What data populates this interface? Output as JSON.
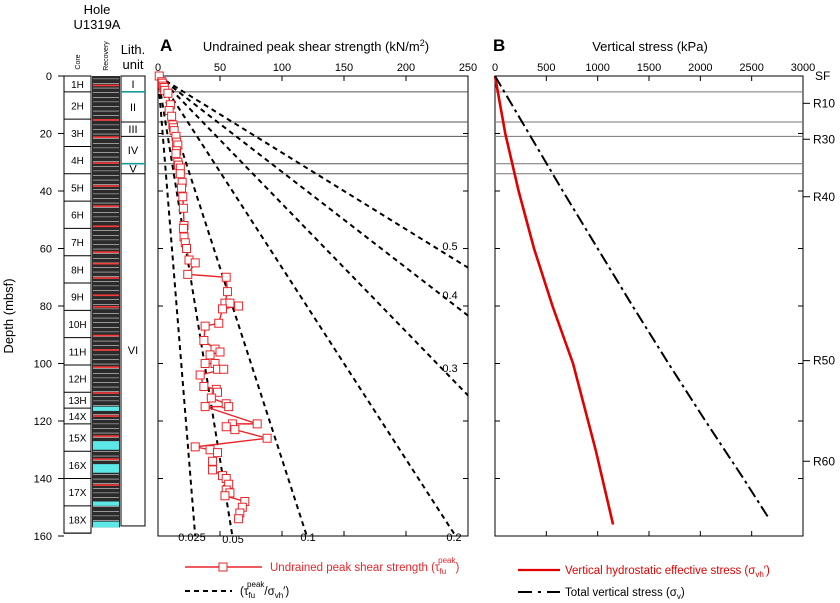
{
  "hole": {
    "line1": "Hole",
    "line2": "U1319A"
  },
  "core_col": {
    "label": "Core"
  },
  "recovery_col": {
    "label": "Recovery"
  },
  "lith_col": {
    "line1": "Lith.",
    "line2": "unit"
  },
  "ylabel": "Depth (mbsf)",
  "cores": [
    {
      "name": "1H",
      "top": 0,
      "bottom": 5.5
    },
    {
      "name": "2H",
      "top": 5.5,
      "bottom": 15
    },
    {
      "name": "3H",
      "top": 15,
      "bottom": 24.5
    },
    {
      "name": "4H",
      "top": 24.5,
      "bottom": 34
    },
    {
      "name": "5H",
      "top": 34,
      "bottom": 43.5
    },
    {
      "name": "6H",
      "top": 43.5,
      "bottom": 53
    },
    {
      "name": "7H",
      "top": 53,
      "bottom": 62.5
    },
    {
      "name": "8H",
      "top": 62.5,
      "bottom": 72
    },
    {
      "name": "9H",
      "top": 72,
      "bottom": 81.5
    },
    {
      "name": "10H",
      "top": 81.5,
      "bottom": 91
    },
    {
      "name": "11H",
      "top": 91,
      "bottom": 100.5
    },
    {
      "name": "12H",
      "top": 100.5,
      "bottom": 110
    },
    {
      "name": "13H",
      "top": 110,
      "bottom": 115.5
    },
    {
      "name": "14X",
      "top": 115.5,
      "bottom": 121
    },
    {
      "name": "15X",
      "top": 121,
      "bottom": 130.5
    },
    {
      "name": "16X",
      "top": 130.5,
      "bottom": 140
    },
    {
      "name": "17X",
      "top": 140,
      "bottom": 149.5
    },
    {
      "name": "18X",
      "top": 149.5,
      "bottom": 159
    }
  ],
  "lith_units": [
    {
      "name": "I",
      "top": 0,
      "bottom": 5.5
    },
    {
      "name": "II",
      "top": 5.5,
      "bottom": 16
    },
    {
      "name": "III",
      "top": 16,
      "bottom": 21
    },
    {
      "name": "IV",
      "top": 21,
      "bottom": 30.5
    },
    {
      "name": "V",
      "top": 30.5,
      "bottom": 34
    },
    {
      "name": "VI",
      "top": 34,
      "bottom": 156.5
    }
  ],
  "unit_boundaries": [
    5.5,
    16,
    21,
    30.5,
    34
  ],
  "reflectors": [
    {
      "name": "SF",
      "depth": 0
    },
    {
      "name": "R10",
      "depth": 9.5
    },
    {
      "name": "R30",
      "depth": 22
    },
    {
      "name": "R40",
      "depth": 42
    },
    {
      "name": "R50",
      "depth": 99
    },
    {
      "name": "R60",
      "depth": 134
    }
  ],
  "colors": {
    "strength": "#e8262a",
    "stress": "#e00000",
    "ratio": "#000000",
    "teal": "#1a9a9a",
    "cyan": "#5de8e8"
  },
  "chart_data": [
    {
      "panel": "A",
      "type": "scatter",
      "title": "Undrained peak shear strength (kN/m²)",
      "xlabel": "Undrained peak shear strength (kN/m²)",
      "ylabel": "Depth (mbsf)",
      "xlim": [
        0,
        250
      ],
      "ylim": [
        160,
        0
      ],
      "xticks": [
        0,
        50,
        100,
        150,
        200,
        250
      ],
      "yticks": [
        0,
        20,
        40,
        60,
        80,
        100,
        120,
        140,
        160
      ],
      "series": [
        {
          "name": "Undrained peak shear strength (τfu peak)",
          "x": [
            1,
            3,
            3.5,
            4,
            5,
            5.5,
            8,
            10,
            9,
            11,
            12,
            12.5,
            13,
            14.5,
            15,
            16,
            15,
            14.5,
            16,
            16.5,
            18,
            18,
            19.5,
            19,
            20,
            20.5,
            21,
            20.5,
            21,
            22,
            23,
            25,
            30,
            24,
            55,
            56,
            54,
            58,
            65,
            52,
            49,
            38,
            37,
            46,
            50,
            42,
            38,
            46,
            48,
            53,
            34,
            37,
            47,
            48,
            43,
            55,
            57,
            38,
            80,
            60,
            55,
            62,
            88,
            30,
            42,
            48,
            44,
            44,
            52,
            55,
            57,
            55,
            58,
            54,
            70,
            68,
            66,
            65
          ],
          "y": [
            0,
            2,
            2.5,
            3.5,
            4,
            5,
            6,
            10,
            12,
            14,
            17,
            18,
            19,
            21,
            23,
            24,
            26,
            27,
            30,
            31,
            32,
            34,
            37,
            39,
            42,
            46,
            52,
            53,
            56,
            58,
            60,
            64,
            65,
            69,
            70,
            75,
            79,
            79,
            80,
            81,
            86,
            87,
            92,
            95,
            96,
            97,
            100,
            100,
            102,
            102,
            104,
            108,
            109,
            110,
            112,
            114,
            115,
            115,
            121,
            121,
            122,
            123,
            126,
            129,
            130,
            131,
            134,
            137,
            139,
            140,
            142,
            144,
            145,
            146,
            148,
            150,
            152,
            154
          ]
        },
        {
          "name": "(τfu peak/σvh′)",
          "ratios": [
            0.025,
            0.05,
            0.1,
            0.2,
            0.3,
            0.4,
            0.5
          ],
          "ratio_labels": [
            "0.025",
            "0.05",
            "0.1",
            "0.2",
            "0.3",
            "0.4",
            "0.5"
          ]
        }
      ]
    },
    {
      "panel": "B",
      "type": "line",
      "title": "Vertical stress (kPa)",
      "xlabel": "Vertical stress (kPa)",
      "ylabel": "Depth (mbsf)",
      "xlim": [
        0,
        3000
      ],
      "ylim": [
        160,
        0
      ],
      "xticks": [
        0,
        500,
        1000,
        1500,
        2000,
        2500,
        3000
      ],
      "series": [
        {
          "name": "Vertical hydrostatic effective stress (σvh′)",
          "x": [
            0,
            100,
            230,
            380,
            560,
            760,
            980,
            1150
          ],
          "y": [
            0,
            20,
            40,
            60,
            80,
            100,
            130,
            156
          ]
        },
        {
          "name": "Total vertical stress (σv)",
          "x": [
            0,
            330,
            660,
            1000,
            1340,
            1690,
            2050,
            2420,
            2670
          ],
          "y": [
            0,
            20,
            40,
            60,
            80,
            100,
            120,
            140,
            154
          ]
        }
      ]
    }
  ]
}
